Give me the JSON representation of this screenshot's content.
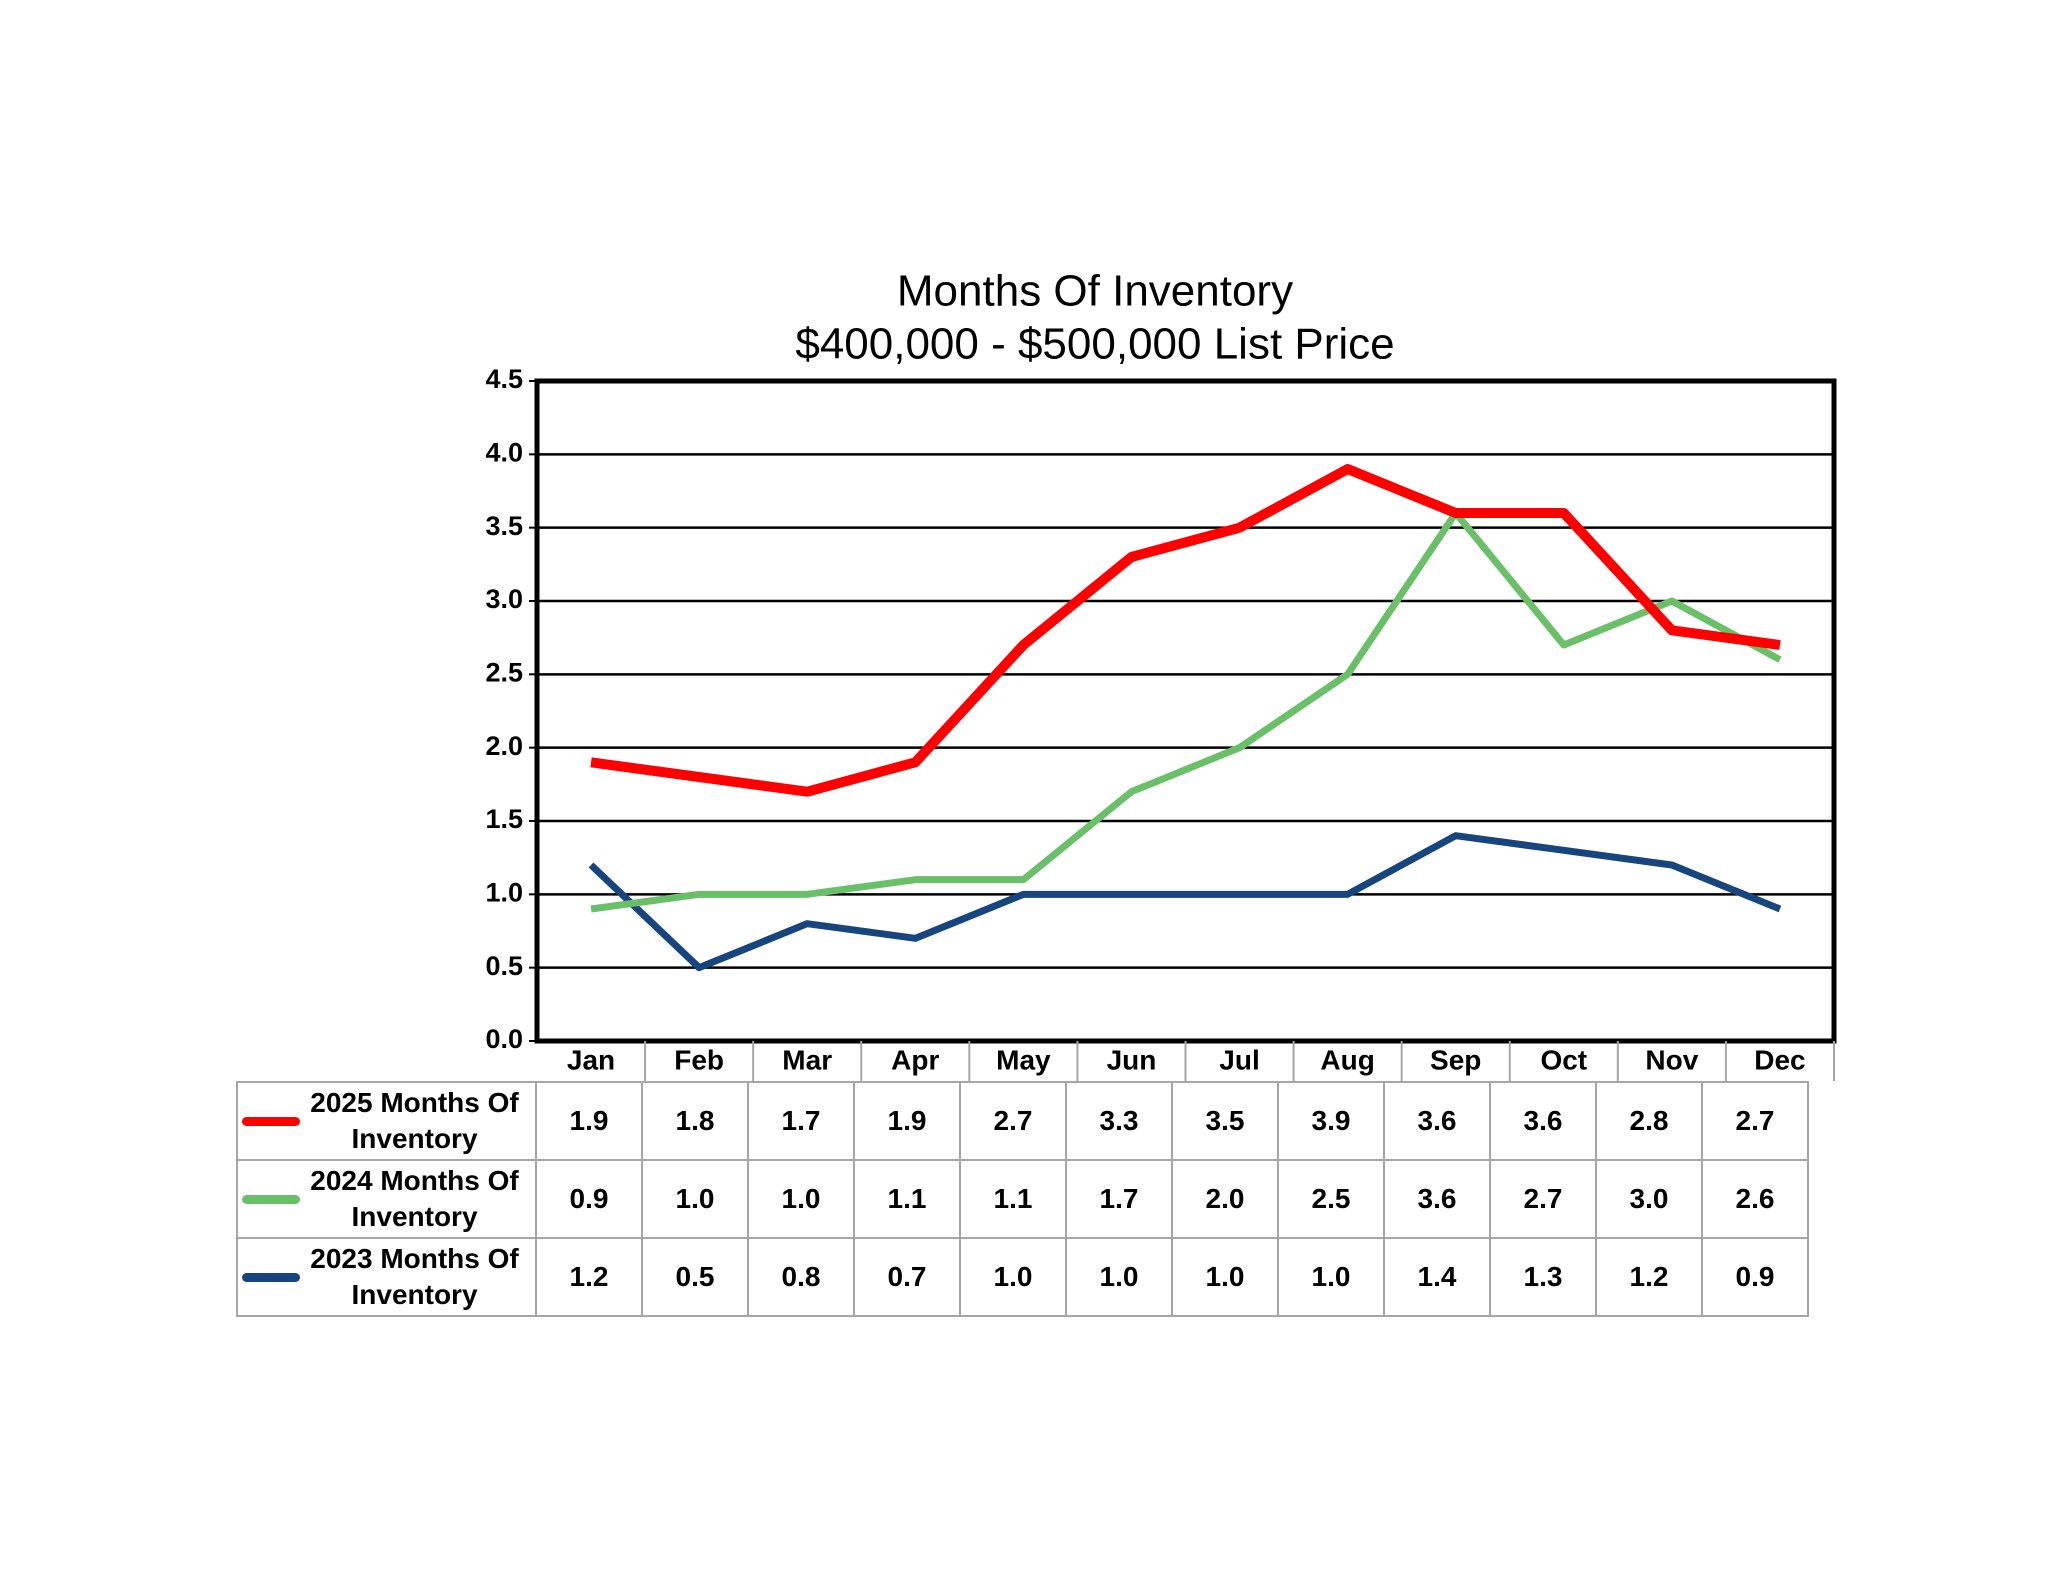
{
  "chart_data": {
    "type": "line",
    "title": "Months Of Inventory",
    "subtitle": "$400,000 - $500,000 List Price",
    "categories": [
      "Jan",
      "Feb",
      "Mar",
      "Apr",
      "May",
      "Jun",
      "Jul",
      "Aug",
      "Sep",
      "Oct",
      "Nov",
      "Dec"
    ],
    "series": [
      {
        "name": "2025 Months Of Inventory",
        "color": "#ff0000",
        "values": [
          1.9,
          1.8,
          1.7,
          1.9,
          2.7,
          3.3,
          3.5,
          3.9,
          3.6,
          3.6,
          2.8,
          2.7
        ],
        "value_labels": [
          "1.9",
          "1.8",
          "1.7",
          "1.9",
          "2.7",
          "3.3",
          "3.5",
          "3.9",
          "3.6",
          "3.6",
          "2.8",
          "2.7"
        ]
      },
      {
        "name": "2024 Months Of Inventory",
        "color": "#6abf69",
        "values": [
          0.9,
          1.0,
          1.0,
          1.1,
          1.1,
          1.7,
          2.0,
          2.5,
          3.6,
          2.7,
          3.0,
          2.6
        ],
        "value_labels": [
          "0.9",
          "1.0",
          "1.0",
          "1.1",
          "1.1",
          "1.7",
          "2.0",
          "2.5",
          "3.6",
          "2.7",
          "3.0",
          "2.6"
        ]
      },
      {
        "name": "2023 Months Of Inventory",
        "color": "#17457d",
        "values": [
          1.2,
          0.5,
          0.8,
          0.7,
          1.0,
          1.0,
          1.0,
          1.0,
          1.4,
          1.3,
          1.2,
          0.9
        ],
        "value_labels": [
          "1.2",
          "0.5",
          "0.8",
          "0.7",
          "1.0",
          "1.0",
          "1.0",
          "1.0",
          "1.4",
          "1.3",
          "1.2",
          "0.9"
        ]
      }
    ],
    "ylim": [
      0,
      4.5
    ],
    "yticks": [
      {
        "value": 0,
        "label": "0.0"
      },
      0.5,
      {
        "value": 1,
        "label": "1.0"
      },
      1.5,
      {
        "value": 2,
        "label": "2.0"
      },
      2.5,
      {
        "value": 3,
        "label": "3.0"
      },
      3.5,
      {
        "value": 4,
        "label": "4.0"
      },
      4.5
    ],
    "grid": true
  }
}
